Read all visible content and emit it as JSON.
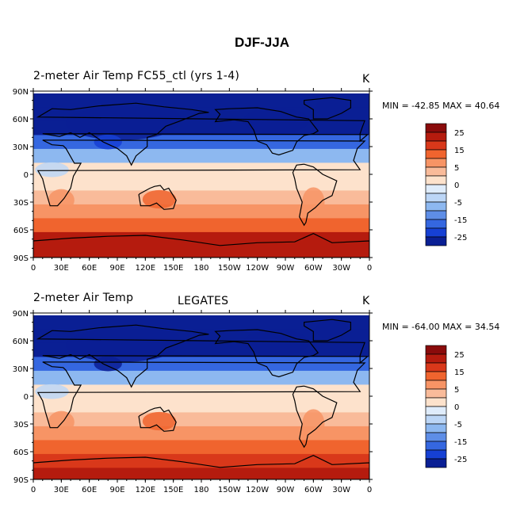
{
  "title": "DJF-JJA",
  "panels": [
    {
      "title_left": "2-meter Air Temp  FC55_ctl (yrs 1-4)",
      "title_center": "",
      "units": "K",
      "stats": "MIN = -42.85 MAX =  40.64"
    },
    {
      "title_left": "2-meter Air Temp",
      "title_center": "LEGATES",
      "units": "K",
      "stats": "MIN = -64.00 MAX =  34.54"
    }
  ],
  "map_axes": {
    "lat_ticks": [
      "90N",
      "60N",
      "30N",
      "0",
      "30S",
      "60S",
      "90S"
    ],
    "lon_ticks": [
      "0",
      "30E",
      "60E",
      "90E",
      "120E",
      "150E",
      "180",
      "150W",
      "120W",
      "90W",
      "60W",
      "30W",
      "0"
    ]
  },
  "colorbar": {
    "tick_labels": [
      "25",
      "15",
      "5",
      "0",
      "-5",
      "-15",
      "-25"
    ],
    "colors": [
      "#8a0b0b",
      "#b51b0e",
      "#d9381a",
      "#f0642e",
      "#f79465",
      "#f9bb9a",
      "#fde2cc",
      "#dfecfb",
      "#bcd6f6",
      "#8db8f0",
      "#5e8ee7",
      "#3567e0",
      "#1640d4",
      "#0a1f94"
    ]
  },
  "chart_data": {
    "type": "heatmap",
    "fields": [
      {
        "name": "FC55_ctl",
        "lat_bands": [
          80,
          65,
          50,
          35,
          20,
          5,
          -10,
          -25,
          -40,
          -55,
          -70,
          -85
        ],
        "zonal_band_value_K": [
          -32,
          -38,
          -30,
          -18,
          -6,
          0,
          2,
          8,
          12,
          15,
          25,
          32
        ]
      },
      {
        "name": "LEGATES",
        "lat_bands": [
          80,
          65,
          50,
          35,
          20,
          5,
          -10,
          -25,
          -40,
          -55,
          -70,
          -85
        ],
        "zonal_band_value_K": [
          -35,
          -45,
          -30,
          -20,
          -6,
          0,
          3,
          8,
          12,
          15,
          22,
          28
        ]
      }
    ],
    "x_range": [
      "0",
      "0"
    ],
    "y_range": [
      "90S",
      "90N"
    ]
  }
}
